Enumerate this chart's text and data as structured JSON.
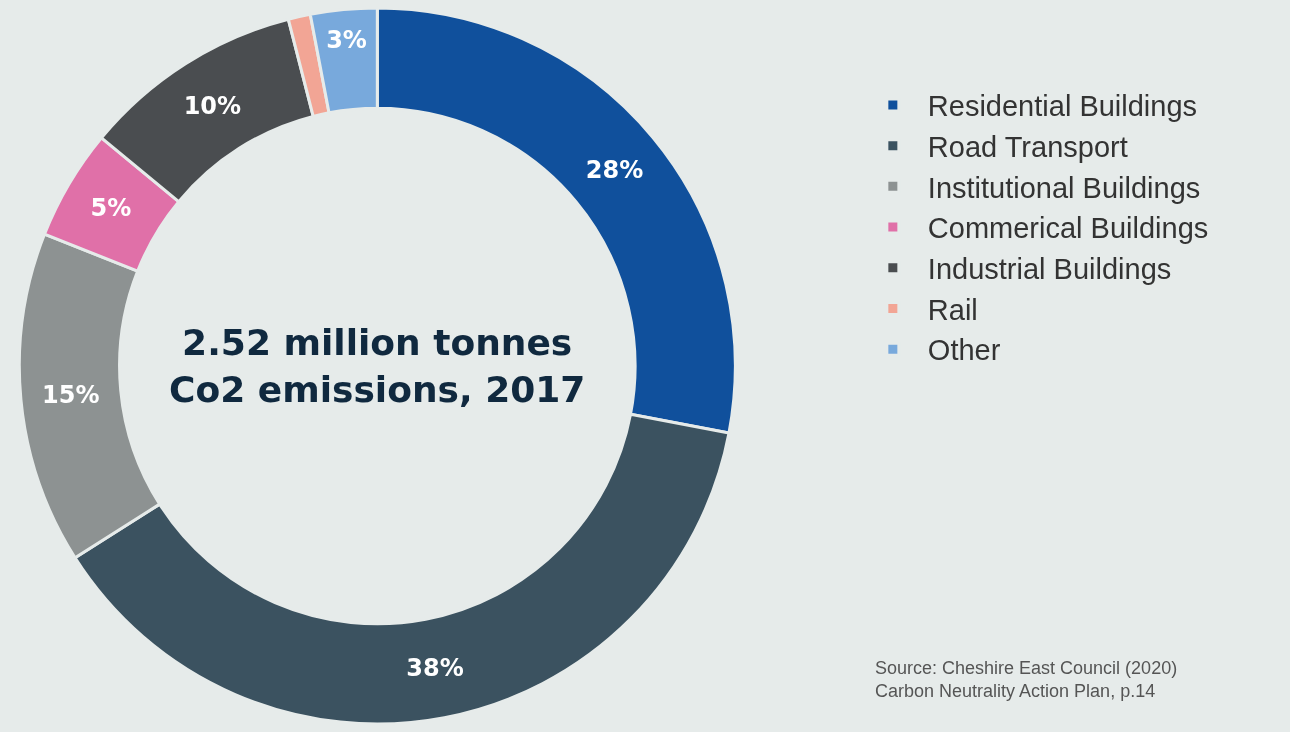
{
  "chart_data": {
    "type": "donut",
    "categories": [
      "Residential Buildings",
      "Road Transport",
      "Institutional Buildings",
      "Commerical Buildings",
      "Industrial Buildings",
      "Rail",
      "Other"
    ],
    "values": [
      28,
      38,
      15,
      5,
      10,
      1,
      3
    ],
    "colors": [
      "#10509c",
      "#3b5260",
      "#8d9292",
      "#e070a8",
      "#4a4d50",
      "#f2a595",
      "#78a9dc"
    ],
    "value_labels": [
      "28%",
      "38%",
      "15%",
      "5%",
      "10%",
      null,
      "3%"
    ],
    "annotations": [
      "2.52 million tonnes\nCo2 emissions, 2017",
      "Source: Cheshire East Council (2020)\nCarbon Neutrality Action Plan, p.14"
    ],
    "legend": "right"
  }
}
